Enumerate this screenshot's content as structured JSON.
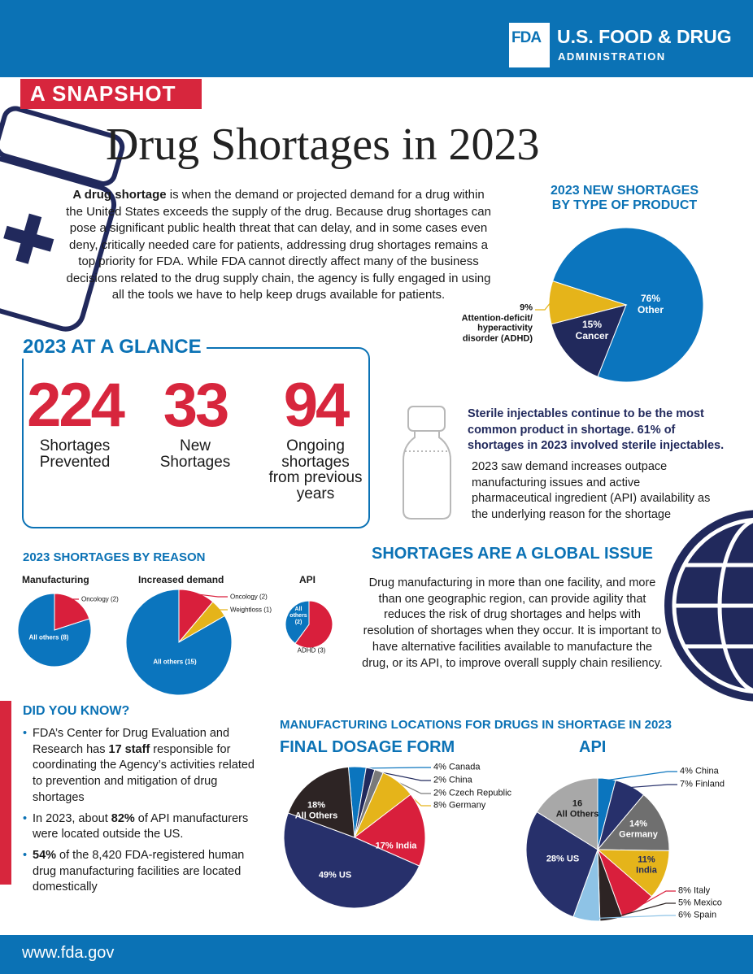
{
  "header": {
    "logo": "FDA",
    "agency": "U.S. FOOD & DRUG",
    "agency_sub": "ADMINISTRATION"
  },
  "badge": "A SNAPSHOT",
  "title": "Drug Shortages in 2023",
  "intro": [
    {
      "text": "A drug shortage",
      "bold": true
    },
    {
      "text": " is when the demand or projected demand for a drug within the United States exceeds the supply of the drug. Because drug shortages can pose a significant public health threat that can delay, and in some cases even deny, critically needed care for patients, addressing drug shortages remains a top priority for FDA. While FDA cannot directly affect many of the business decisions related to the drug supply chain, the agency is fully engaged in using all the tools we have to help keep drugs available for patients.",
      "bold": false
    }
  ],
  "glance": {
    "title": "2023 AT A GLANCE",
    "stats": [
      {
        "value": 224,
        "label": "Shortages Prevented"
      },
      {
        "value": 33,
        "label": "New Shortages"
      },
      {
        "value": 94,
        "label": "Ongoing shortages from previous years"
      }
    ]
  },
  "sterile": {
    "highlight": "Sterile injectables continue to be the most common product in shortage. 61% of shortages in 2023 involved sterile injectables.",
    "text": "2023 saw demand increases outpace manufacturing issues and active pharmaceutical ingredient (API) availability as the underlying reason for the shortage"
  },
  "reason_title": "2023 SHORTAGES BY REASON",
  "global": {
    "title": "SHORTAGES ARE A GLOBAL ISSUE",
    "text": "Drug manufacturing in more than one facility, and more than one geographic region, can provide agility that reduces the risk of drug shortages and helps with resolution of shortages when they occur. It is important to have alternative facilities available to manufacture the drug, or its API, to improve overall supply chain resiliency."
  },
  "did_you_know": {
    "title": "DID YOU KNOW?",
    "bullets": [
      [
        {
          "text": "FDA’s Center for Drug Evaluation and Research has ",
          "bold": false
        },
        {
          "text": "17 staff",
          "bold": true
        },
        {
          "text": " responsible for coordinating the Agency’s activities related to prevention and mitigation of drug shortages",
          "bold": false
        }
      ],
      [
        {
          "text": "In 2023, about ",
          "bold": false
        },
        {
          "text": "82%",
          "bold": true
        },
        {
          "text": " of API manufacturers were located outside the US.",
          "bold": false
        }
      ],
      [
        {
          "text": "54%",
          "bold": true
        },
        {
          "text": " of the 8,420 FDA-registered human drug manufacturing facilities are located domestically",
          "bold": false
        }
      ]
    ]
  },
  "locations_title": "MANUFACTURING LOCATIONS FOR DRUGS IN SHORTAGE IN 2023",
  "chart_data": [
    {
      "type": "pie",
      "title": "2023 NEW SHORTAGES BY TYPE OF PRODUCT",
      "categories": [
        "Other",
        "Cancer",
        "Attention-deficit/ hyperactivity disorder (ADHD)"
      ],
      "values": [
        76,
        15,
        9
      ],
      "value_labels": [
        "76%",
        "15%",
        "9%"
      ],
      "colors": [
        "#0b75be",
        "#21295c",
        "#e5b41a"
      ]
    },
    {
      "type": "pie",
      "title": "Manufacturing",
      "values": [
        2,
        8
      ],
      "value_labels": [
        "Oncology (2)",
        "All others (8)"
      ],
      "colors": [
        "#d91f3c",
        "#0b75be"
      ]
    },
    {
      "type": "pie",
      "title": "Increased demand",
      "values": [
        2,
        1,
        15
      ],
      "value_labels": [
        "Oncology (2)",
        "Weightloss (1)",
        "All others (15)"
      ],
      "colors": [
        "#d91f3c",
        "#e5b41a",
        "#0b75be"
      ]
    },
    {
      "type": "pie",
      "title": "API",
      "values": [
        3,
        2
      ],
      "value_labels": [
        "ADHD (3)",
        "All others (2)"
      ],
      "colors": [
        "#d91f3c",
        "#0b75be"
      ]
    },
    {
      "type": "pie",
      "title": "FINAL DOSAGE FORM",
      "categories": [
        "Canada",
        "China",
        "Czech Republic",
        "Germany",
        "India",
        "US",
        "All Others"
      ],
      "values": [
        4,
        2,
        2,
        8,
        17,
        49,
        18
      ],
      "value_labels": [
        "4%",
        "2%",
        "2%",
        "8%",
        "17%",
        "49%",
        "18%"
      ],
      "colors": [
        "#0b75be",
        "#21295c",
        "#7a7a7a",
        "#e5b41a",
        "#d91f3c",
        "#27306b",
        "#2d2424"
      ]
    },
    {
      "type": "pie",
      "title": "API",
      "categories": [
        "China",
        "Finland",
        "Germany",
        "India",
        "Italy",
        "Mexico",
        "Spain",
        "US",
        "All Others"
      ],
      "values": [
        4,
        7,
        14,
        11,
        8,
        5,
        6,
        28,
        16
      ],
      "value_labels": [
        "4%",
        "7%",
        "14%",
        "11%",
        "8%",
        "5%",
        "6%",
        "28%",
        "16"
      ],
      "colors": [
        "#0b75be",
        "#27306b",
        "#6f6f6f",
        "#e5b41a",
        "#d91f3c",
        "#2d2424",
        "#8ec3e6",
        "#27306b",
        "#a8a8a8"
      ]
    }
  ],
  "footer": "www.fda.gov"
}
